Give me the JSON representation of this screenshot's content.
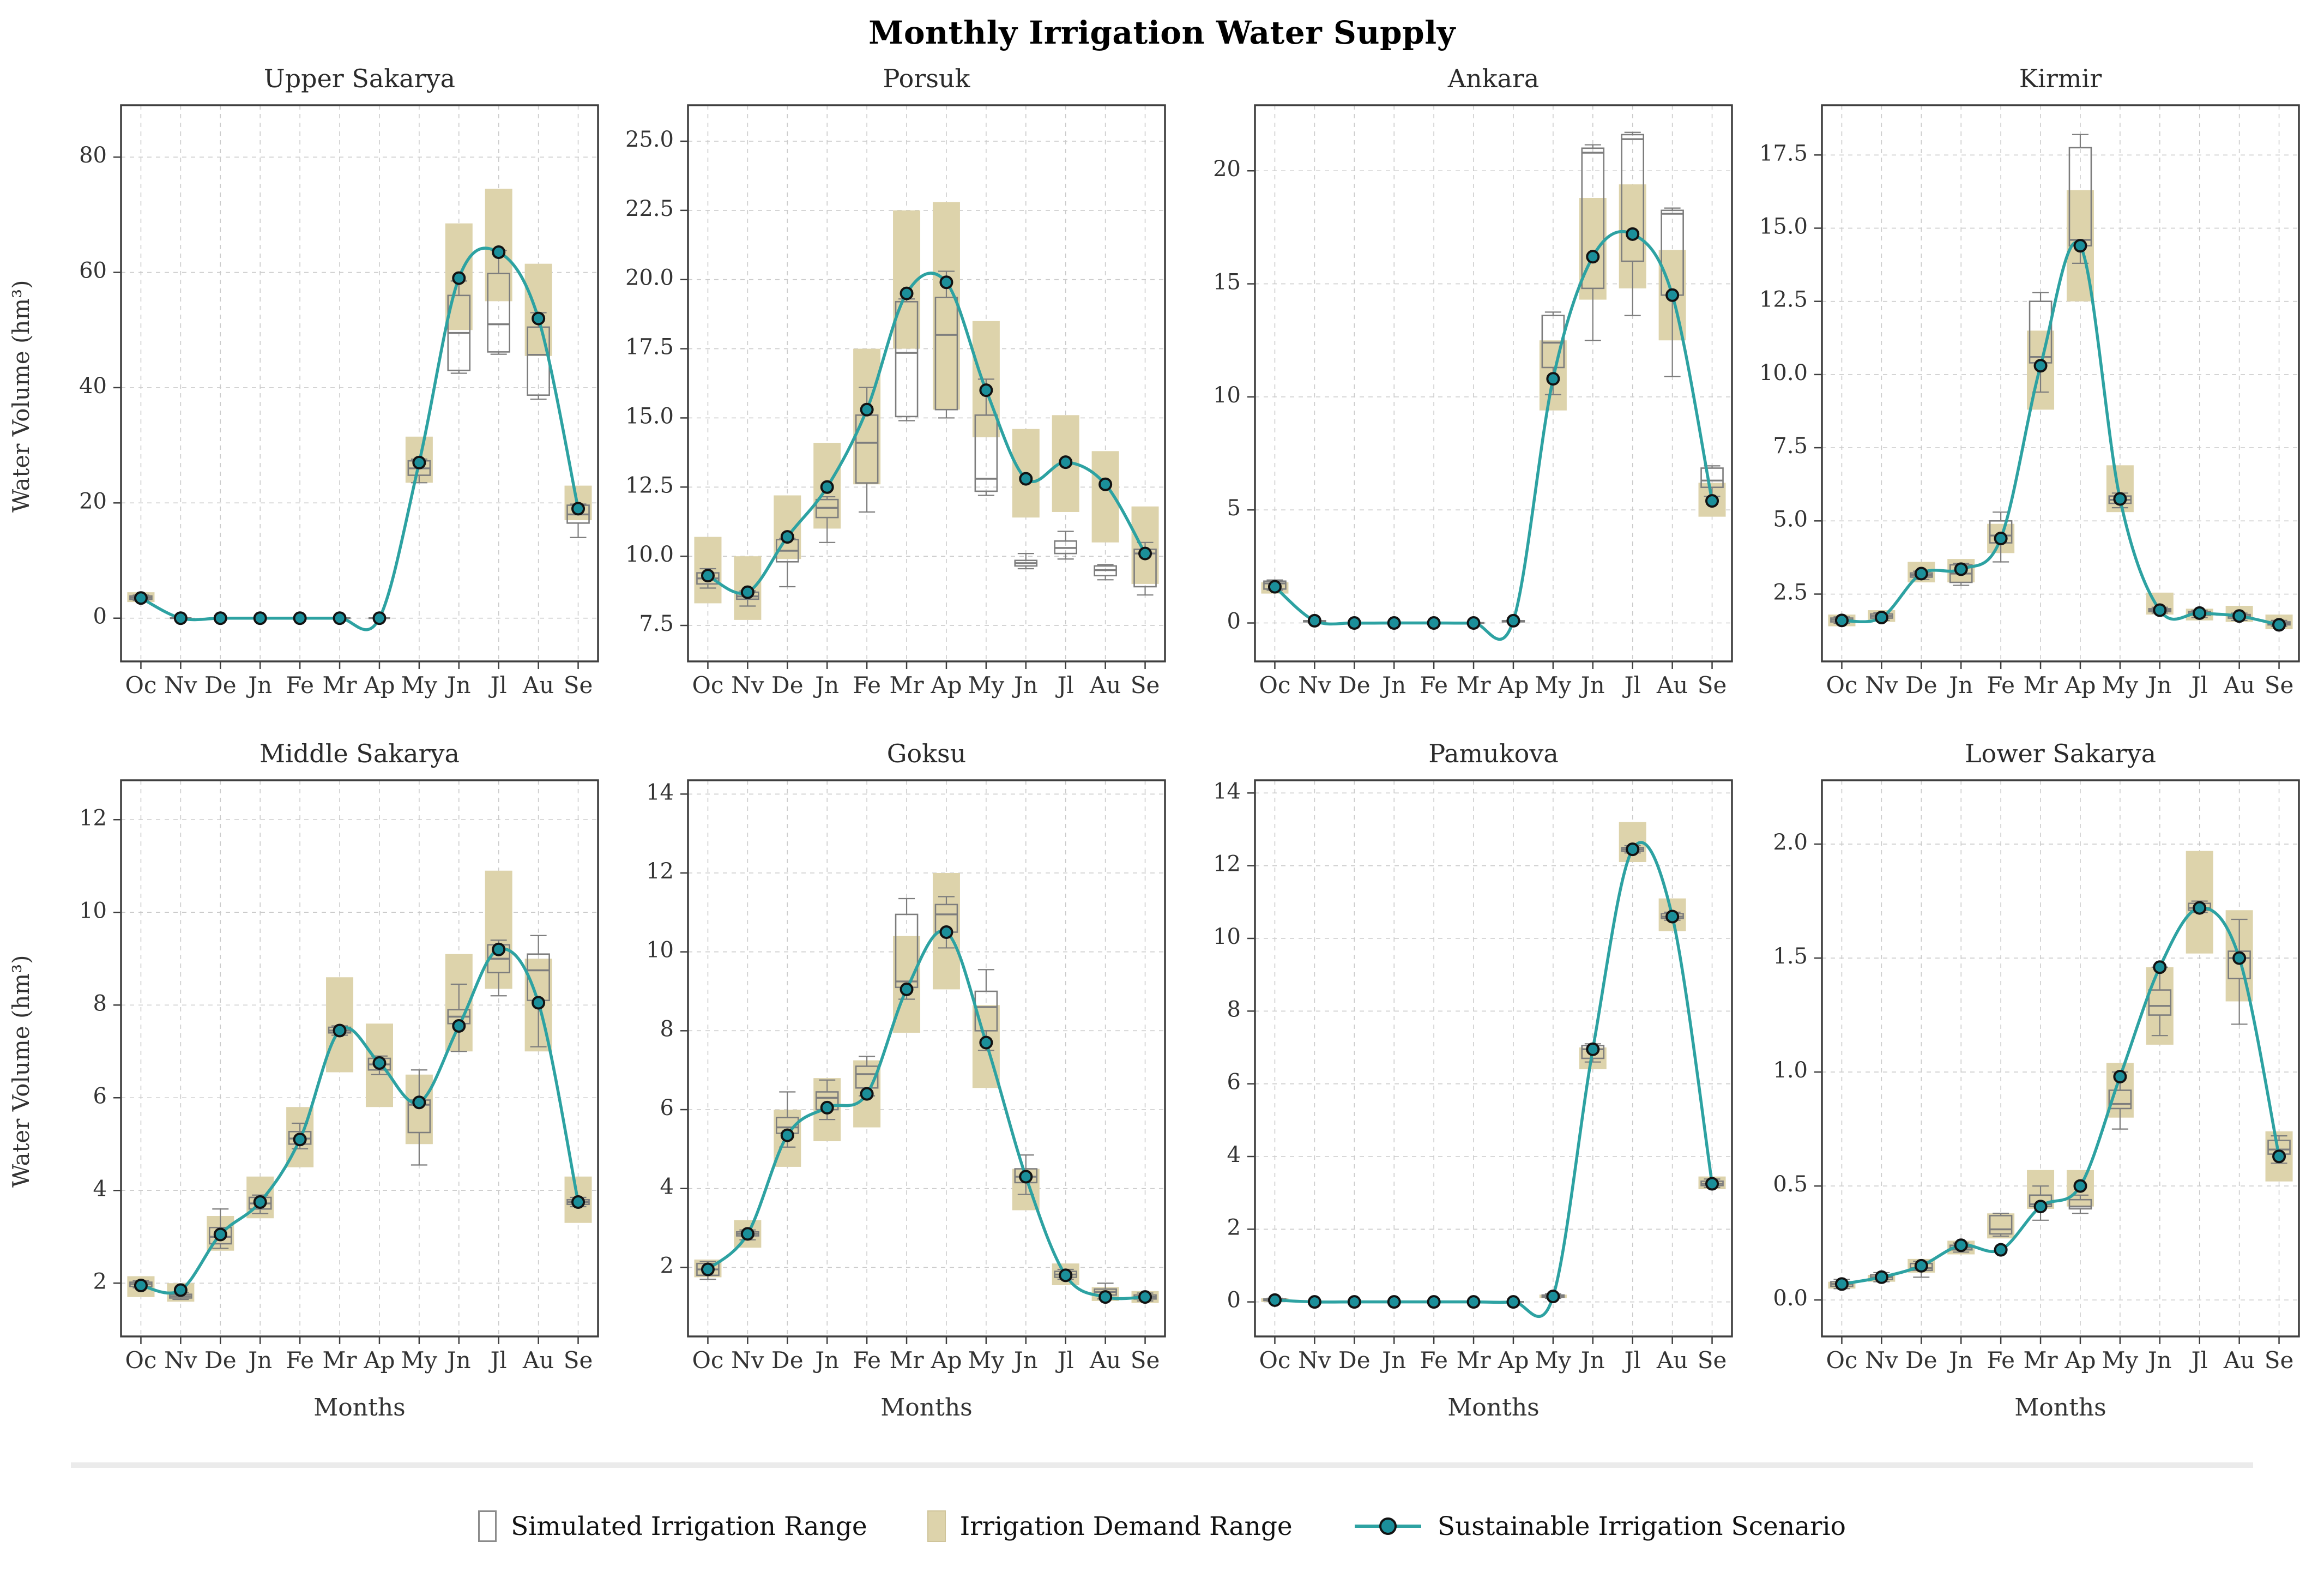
{
  "title": "Monthly Irrigation Water Supply",
  "ylabel": "Water Volume (hm³)",
  "xlabel": "Months",
  "months": [
    "Oc",
    "Nv",
    "De",
    "Jn",
    "Fe",
    "Mr",
    "Ap",
    "My",
    "Jn",
    "Jl",
    "Au",
    "Se"
  ],
  "legend": [
    {
      "label": "Simulated Irrigation Range",
      "swatch": "white-box"
    },
    {
      "label": "Irrigation Demand Range",
      "swatch": "tan-box"
    },
    {
      "label": "Sustainable Irrigation Scenario",
      "swatch": "teal-line-marker"
    }
  ],
  "colors": {
    "scenario_line": "#2da2a2",
    "marker_fill": "#1b8f9a",
    "marker_edge": "#121212",
    "demand_fill": "#ddd3ab",
    "box_edge": "#7d7d7d",
    "grid": "#cbcbcb",
    "axis_frame": "#3f3f3f",
    "text": "#333333"
  },
  "chart_data": [
    {
      "type": "boxplot+line",
      "title": "Upper Sakarya",
      "yticks": [
        0,
        20,
        40,
        60,
        80
      ],
      "ytick_labels": [
        "0",
        "20",
        "40",
        "60",
        "80"
      ],
      "ylim": [
        -7.5,
        89
      ],
      "scenario": [
        3.5,
        0,
        0,
        0,
        0,
        0,
        0,
        27,
        59,
        63.5,
        52,
        19
      ],
      "demand": [
        [
          2.8,
          4.5
        ],
        [
          0,
          0
        ],
        [
          0,
          0
        ],
        [
          0,
          0
        ],
        [
          0,
          0
        ],
        [
          0,
          0
        ],
        [
          0,
          0
        ],
        [
          23.5,
          31.5
        ],
        [
          50,
          68.5
        ],
        [
          55,
          74.5
        ],
        [
          45.5,
          61.5
        ],
        [
          17,
          23
        ]
      ],
      "boxes": [
        [
          3.1,
          3.25,
          3.55,
          3.85,
          4.0
        ],
        [
          0,
          0,
          0,
          0,
          0
        ],
        [
          0,
          0,
          0,
          0,
          0
        ],
        [
          0,
          0,
          0,
          0,
          0
        ],
        [
          0,
          0,
          0,
          0,
          0
        ],
        [
          0,
          0,
          0,
          0,
          0
        ],
        [
          0,
          0,
          0,
          0,
          0
        ],
        [
          23.5,
          24.8,
          26.0,
          27.3,
          27.6
        ],
        [
          42.5,
          43.0,
          49.5,
          56.0,
          58.5
        ],
        [
          45.8,
          46.2,
          51.0,
          59.8,
          63.8
        ],
        [
          38.0,
          38.7,
          45.7,
          50.5,
          53.0
        ],
        [
          14.0,
          16.5,
          18.0,
          19.6,
          19.8
        ]
      ]
    },
    {
      "type": "boxplot+line",
      "title": "Porsuk",
      "yticks": [
        7.5,
        10.0,
        12.5,
        15.0,
        17.5,
        20.0,
        22.5,
        25.0
      ],
      "ytick_labels": [
        "7.5",
        "10.0",
        "12.5",
        "15.0",
        "17.5",
        "20.0",
        "22.5",
        "25.0"
      ],
      "ylim": [
        6.2,
        26.3
      ],
      "scenario": [
        9.3,
        8.7,
        10.7,
        12.5,
        15.3,
        19.5,
        19.9,
        16.0,
        12.8,
        13.4,
        12.6,
        10.1
      ],
      "demand": [
        [
          8.3,
          10.7
        ],
        [
          7.7,
          10.0
        ],
        [
          9.9,
          12.2
        ],
        [
          11.0,
          14.1
        ],
        [
          12.6,
          17.5
        ],
        [
          17.5,
          22.5
        ],
        [
          15.3,
          22.8
        ],
        [
          14.3,
          18.5
        ],
        [
          11.4,
          14.6
        ],
        [
          11.6,
          15.1
        ],
        [
          10.5,
          13.8
        ],
        [
          9.0,
          11.8
        ]
      ],
      "boxes": [
        [
          8.85,
          9.0,
          9.2,
          9.4,
          9.55
        ],
        [
          8.2,
          8.45,
          8.55,
          8.7,
          8.75
        ],
        [
          8.9,
          9.8,
          10.2,
          10.6,
          10.65
        ],
        [
          10.5,
          11.4,
          11.75,
          12.05,
          12.15
        ],
        [
          11.6,
          12.65,
          14.1,
          15.1,
          16.1
        ],
        [
          14.9,
          15.05,
          17.35,
          19.2,
          19.3
        ],
        [
          15.0,
          15.3,
          18.0,
          19.35,
          20.3
        ],
        [
          12.2,
          12.35,
          12.8,
          15.1,
          16.4
        ],
        [
          9.55,
          9.65,
          9.75,
          9.85,
          10.1
        ],
        [
          9.9,
          10.1,
          10.3,
          10.55,
          10.9
        ],
        [
          9.15,
          9.3,
          9.5,
          9.65,
          9.7
        ],
        [
          8.6,
          8.9,
          10.1,
          10.25,
          10.5
        ]
      ]
    },
    {
      "type": "boxplot+line",
      "title": "Ankara",
      "yticks": [
        0,
        5,
        10,
        15,
        20
      ],
      "ytick_labels": [
        "0",
        "5",
        "10",
        "15",
        "20"
      ],
      "ylim": [
        -1.7,
        22.9
      ],
      "scenario": [
        1.6,
        0.1,
        0,
        0,
        0,
        0,
        0.1,
        10.8,
        16.2,
        17.2,
        14.5,
        5.4
      ],
      "demand": [
        [
          1.3,
          1.8
        ],
        [
          0,
          0
        ],
        [
          0,
          0
        ],
        [
          0,
          0
        ],
        [
          0,
          0
        ],
        [
          0,
          0
        ],
        [
          0,
          0
        ],
        [
          9.4,
          12.5
        ],
        [
          14.3,
          18.8
        ],
        [
          14.8,
          19.4
        ],
        [
          12.5,
          16.5
        ],
        [
          4.7,
          6.2
        ]
      ],
      "boxes": [
        [
          1.45,
          1.5,
          1.75,
          1.85,
          1.9
        ],
        [
          0.05,
          0.05,
          0.08,
          0.1,
          0.1
        ],
        [
          0,
          0,
          0,
          0,
          0
        ],
        [
          0,
          0,
          0,
          0,
          0
        ],
        [
          0,
          0,
          0,
          0,
          0
        ],
        [
          0,
          0,
          0,
          0,
          0
        ],
        [
          0.05,
          0.05,
          0.08,
          0.1,
          0.1
        ],
        [
          10.1,
          11.3,
          12.4,
          13.6,
          13.75
        ],
        [
          12.5,
          14.8,
          20.8,
          21.0,
          21.15
        ],
        [
          13.6,
          16.0,
          21.4,
          21.6,
          21.7
        ],
        [
          10.9,
          14.5,
          18.1,
          18.25,
          18.35
        ],
        [
          5.6,
          6.0,
          6.3,
          6.85,
          6.95
        ]
      ]
    },
    {
      "type": "boxplot+line",
      "title": "Kirmir",
      "yticks": [
        2.5,
        5.0,
        7.5,
        10.0,
        12.5,
        15.0,
        17.5
      ],
      "ytick_labels": [
        "2.5",
        "5.0",
        "7.5",
        "10.0",
        "12.5",
        "15.0",
        "17.5"
      ],
      "ylim": [
        0.2,
        19.2
      ],
      "scenario": [
        1.6,
        1.7,
        3.2,
        3.35,
        4.4,
        10.3,
        14.4,
        5.75,
        1.95,
        1.85,
        1.75,
        1.45
      ],
      "demand": [
        [
          1.4,
          1.8
        ],
        [
          1.55,
          1.95
        ],
        [
          2.9,
          3.6
        ],
        [
          2.9,
          3.7
        ],
        [
          3.9,
          4.9
        ],
        [
          8.8,
          11.5
        ],
        [
          12.5,
          16.3
        ],
        [
          5.3,
          6.9
        ],
        [
          1.8,
          2.55
        ],
        [
          1.6,
          2.0
        ],
        [
          1.55,
          2.1
        ],
        [
          1.3,
          1.8
        ]
      ],
      "boxes": [
        [
          1.5,
          1.55,
          1.62,
          1.68,
          1.72
        ],
        [
          1.6,
          1.68,
          1.75,
          1.82,
          1.86
        ],
        [
          3.0,
          3.08,
          3.15,
          3.22,
          3.28
        ],
        [
          2.8,
          2.9,
          3.2,
          3.5,
          3.55
        ],
        [
          3.6,
          4.25,
          4.5,
          5.0,
          5.3
        ],
        [
          9.4,
          10.4,
          10.6,
          12.5,
          12.8
        ],
        [
          13.8,
          14.4,
          14.6,
          17.75,
          18.2
        ],
        [
          5.45,
          5.6,
          5.72,
          5.85,
          5.95
        ],
        [
          1.85,
          1.9,
          1.95,
          2.0,
          2.05
        ],
        [
          1.7,
          1.78,
          1.84,
          1.9,
          1.95
        ],
        [
          1.6,
          1.68,
          1.74,
          1.8,
          1.85
        ],
        [
          1.4,
          1.45,
          1.5,
          1.55,
          1.6
        ]
      ]
    },
    {
      "type": "boxplot+line",
      "title": "Middle Sakarya",
      "yticks": [
        2,
        4,
        6,
        8,
        10,
        12
      ],
      "ytick_labels": [
        "2",
        "4",
        "6",
        "8",
        "10",
        "12"
      ],
      "ylim": [
        0.85,
        12.85
      ],
      "scenario": [
        1.95,
        1.85,
        3.05,
        3.75,
        5.1,
        7.45,
        6.75,
        5.9,
        7.55,
        9.2,
        8.05,
        3.75
      ],
      "demand": [
        [
          1.7,
          2.15
        ],
        [
          1.6,
          2.0
        ],
        [
          2.7,
          3.45
        ],
        [
          3.4,
          4.3
        ],
        [
          4.5,
          5.8
        ],
        [
          6.55,
          8.6
        ],
        [
          5.8,
          7.6
        ],
        [
          5.0,
          6.5
        ],
        [
          7.0,
          9.1
        ],
        [
          8.35,
          10.9
        ],
        [
          7.0,
          9.0
        ],
        [
          3.3,
          4.3
        ]
      ],
      "boxes": [
        [
          1.9,
          1.93,
          1.98,
          2.02,
          2.05
        ],
        [
          1.65,
          1.68,
          1.72,
          1.76,
          1.8
        ],
        [
          2.75,
          2.85,
          3.0,
          3.2,
          3.6
        ],
        [
          3.5,
          3.6,
          3.72,
          3.85,
          3.9
        ],
        [
          4.9,
          5.0,
          5.12,
          5.27,
          5.45
        ],
        [
          7.35,
          7.4,
          7.45,
          7.52,
          7.55
        ],
        [
          6.5,
          6.6,
          6.72,
          6.85,
          6.9
        ],
        [
          4.55,
          5.25,
          5.85,
          5.95,
          6.6
        ],
        [
          7.0,
          7.6,
          7.75,
          7.9,
          8.45
        ],
        [
          8.2,
          8.7,
          9.0,
          9.3,
          9.4
        ],
        [
          7.1,
          8.1,
          8.75,
          9.1,
          9.5
        ],
        [
          3.65,
          3.7,
          3.75,
          3.8,
          3.85
        ]
      ]
    },
    {
      "type": "boxplot+line",
      "title": "Goksu",
      "yticks": [
        2,
        4,
        6,
        8,
        10,
        12,
        14
      ],
      "ytick_labels": [
        "2",
        "4",
        "6",
        "8",
        "10",
        "12",
        "14"
      ],
      "ylim": [
        0.25,
        14.35
      ],
      "scenario": [
        1.95,
        2.85,
        5.35,
        6.05,
        6.4,
        9.05,
        10.5,
        7.7,
        4.3,
        1.8,
        1.25,
        1.25
      ],
      "demand": [
        [
          1.75,
          2.2
        ],
        [
          2.5,
          3.2
        ],
        [
          4.55,
          6.0
        ],
        [
          5.2,
          6.8
        ],
        [
          5.55,
          7.25
        ],
        [
          7.95,
          10.4
        ],
        [
          9.05,
          12.0
        ],
        [
          6.55,
          8.65
        ],
        [
          3.45,
          4.5
        ],
        [
          1.55,
          2.1
        ],
        [
          1.15,
          1.5
        ],
        [
          1.1,
          1.4
        ]
      ],
      "boxes": [
        [
          1.7,
          1.8,
          1.95,
          2.1,
          2.15
        ],
        [
          2.7,
          2.8,
          2.85,
          2.9,
          2.95
        ],
        [
          5.05,
          5.4,
          5.55,
          5.8,
          6.45
        ],
        [
          5.75,
          6.0,
          6.3,
          6.45,
          6.75
        ],
        [
          6.35,
          6.55,
          6.9,
          7.1,
          7.35
        ],
        [
          8.8,
          9.1,
          9.25,
          10.95,
          11.35
        ],
        [
          10.1,
          10.5,
          10.95,
          11.2,
          11.4
        ],
        [
          7.5,
          8.0,
          8.6,
          9.0,
          9.55
        ],
        [
          3.85,
          4.15,
          4.3,
          4.5,
          4.85
        ],
        [
          1.7,
          1.75,
          1.82,
          1.9,
          1.95
        ],
        [
          1.2,
          1.3,
          1.38,
          1.45,
          1.6
        ],
        [
          1.15,
          1.2,
          1.25,
          1.3,
          1.35
        ]
      ]
    },
    {
      "type": "boxplot+line",
      "title": "Pamukova",
      "yticks": [
        0,
        2,
        4,
        6,
        8,
        10,
        12,
        14
      ],
      "ytick_labels": [
        "0",
        "2",
        "4",
        "6",
        "8",
        "10",
        "12",
        "14"
      ],
      "ylim": [
        -0.95,
        14.35
      ],
      "scenario": [
        0.05,
        0,
        0,
        0,
        0,
        0,
        0,
        0.15,
        6.95,
        12.45,
        10.6,
        3.25
      ],
      "demand": [
        [
          0,
          0.1
        ],
        [
          0,
          0
        ],
        [
          0,
          0
        ],
        [
          0,
          0
        ],
        [
          0,
          0
        ],
        [
          0,
          0
        ],
        [
          0,
          0
        ],
        [
          0.1,
          0.2
        ],
        [
          6.4,
          7.0
        ],
        [
          12.1,
          13.2
        ],
        [
          10.2,
          11.1
        ],
        [
          3.1,
          3.45
        ]
      ],
      "boxes": [
        [
          0.02,
          0.04,
          0.06,
          0.08,
          0.1
        ],
        [
          0,
          0,
          0,
          0,
          0
        ],
        [
          0,
          0,
          0,
          0,
          0
        ],
        [
          0,
          0,
          0,
          0,
          0
        ],
        [
          0,
          0,
          0,
          0,
          0
        ],
        [
          0,
          0,
          0,
          0,
          0
        ],
        [
          0,
          0,
          0,
          0,
          0
        ],
        [
          0.1,
          0.13,
          0.16,
          0.19,
          0.22
        ],
        [
          6.6,
          6.7,
          6.95,
          7.05,
          7.1
        ],
        [
          12.35,
          12.4,
          12.45,
          12.5,
          12.55
        ],
        [
          10.5,
          10.55,
          10.6,
          10.68,
          10.72
        ],
        [
          3.15,
          3.2,
          3.25,
          3.32,
          3.38
        ]
      ]
    },
    {
      "type": "boxplot+line",
      "title": "Lower Sakarya",
      "yticks": [
        0.0,
        0.5,
        1.0,
        1.5,
        2.0
      ],
      "ytick_labels": [
        "0.0",
        "0.5",
        "1.0",
        "1.5",
        "2.0"
      ],
      "ylim": [
        -0.16,
        2.28
      ],
      "scenario": [
        0.07,
        0.1,
        0.15,
        0.24,
        0.22,
        0.41,
        0.5,
        0.98,
        1.46,
        1.72,
        1.5,
        0.63
      ],
      "demand": [
        [
          0.05,
          0.08
        ],
        [
          0.08,
          0.11
        ],
        [
          0.12,
          0.18
        ],
        [
          0.2,
          0.26
        ],
        [
          0.27,
          0.38
        ],
        [
          0.4,
          0.57
        ],
        [
          0.41,
          0.57
        ],
        [
          0.8,
          1.04
        ],
        [
          1.12,
          1.46
        ],
        [
          1.52,
          1.97
        ],
        [
          1.31,
          1.71
        ],
        [
          0.52,
          0.74
        ]
      ],
      "boxes": [
        [
          0.05,
          0.06,
          0.07,
          0.08,
          0.09
        ],
        [
          0.08,
          0.09,
          0.1,
          0.11,
          0.12
        ],
        [
          0.1,
          0.13,
          0.14,
          0.16,
          0.17
        ],
        [
          0.21,
          0.22,
          0.23,
          0.24,
          0.25
        ],
        [
          0.28,
          0.29,
          0.31,
          0.37,
          0.38
        ],
        [
          0.35,
          0.41,
          0.42,
          0.46,
          0.5
        ],
        [
          0.38,
          0.4,
          0.41,
          0.44,
          0.46
        ],
        [
          0.75,
          0.84,
          0.86,
          0.92,
          1.0
        ],
        [
          1.16,
          1.25,
          1.29,
          1.36,
          1.46
        ],
        [
          1.7,
          1.71,
          1.72,
          1.74,
          1.75
        ],
        [
          1.21,
          1.41,
          1.5,
          1.53,
          1.67
        ],
        [
          0.6,
          0.64,
          0.66,
          0.7,
          0.72
        ]
      ]
    }
  ]
}
